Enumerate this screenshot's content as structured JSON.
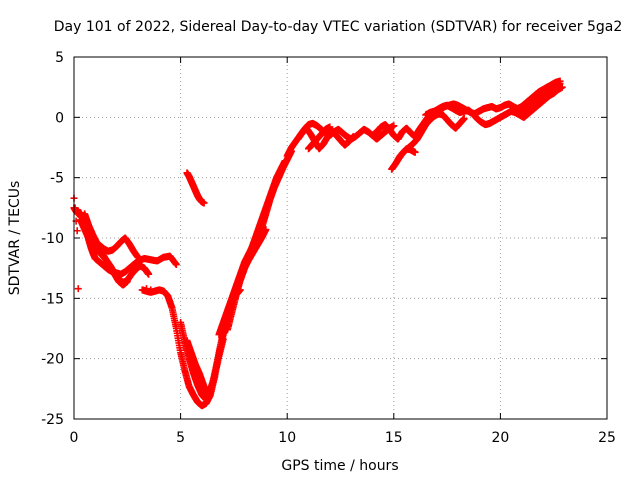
{
  "chart_data": {
    "type": "scatter",
    "title": "Day 101 of 2022, Sidereal Day-to-day VTEC variation (SDTVAR) for receiver 5ga2",
    "xlabel": "GPS time / hours",
    "ylabel": "SDTVAR / TECUs",
    "xlim": [
      0,
      25
    ],
    "ylim": [
      -25,
      5
    ],
    "xticks": [
      0,
      5,
      10,
      15,
      20,
      25
    ],
    "yticks": [
      -25,
      -20,
      -15,
      -10,
      -5,
      0,
      5
    ],
    "grid": true,
    "marker": "+",
    "color": "#ff0000",
    "series": [
      {
        "name": "SDTVAR",
        "tracks": [
          {
            "x": [
              0.0,
              0.1,
              0.2,
              0.3,
              0.4,
              0.5,
              0.6,
              0.7,
              0.8,
              0.9,
              1.0,
              1.2,
              1.4,
              1.6,
              1.8,
              2.0,
              2.2,
              2.4,
              2.6,
              2.8,
              3.0,
              3.3,
              3.6,
              3.9,
              4.2,
              4.5,
              4.8
            ],
            "y": [
              -7.5,
              -7.8,
              -8.0,
              -7.9,
              -8.3,
              -8.8,
              -9.5,
              -10.2,
              -10.8,
              -11.3,
              -11.7,
              -12.0,
              -12.3,
              -12.6,
              -12.8,
              -12.9,
              -13.0,
              -12.8,
              -12.5,
              -12.2,
              -11.9,
              -11.7,
              -11.8,
              -11.9,
              -11.6,
              -11.5,
              -12.2
            ]
          },
          {
            "x": [
              0.3,
              0.5,
              0.7,
              0.9,
              1.1,
              1.3,
              1.5,
              1.7,
              1.9,
              2.1,
              2.3,
              2.5,
              2.7,
              2.9,
              3.1,
              3.3,
              3.5
            ],
            "y": [
              -8.5,
              -9.3,
              -10.1,
              -10.6,
              -11.0,
              -11.4,
              -11.8,
              -12.3,
              -12.9,
              -13.4,
              -13.7,
              -13.5,
              -13.0,
              -12.6,
              -12.3,
              -12.5,
              -13.0
            ]
          },
          {
            "x": [
              0.2,
              0.4,
              0.6,
              0.8,
              1.0,
              1.2,
              1.4,
              1.6,
              1.8,
              2.0,
              2.2,
              2.4,
              2.6,
              2.8,
              3.0
            ],
            "y": [
              -7.8,
              -8.4,
              -9.2,
              -9.8,
              -10.3,
              -10.6,
              -10.9,
              -11.1,
              -11.0,
              -10.7,
              -10.3,
              -10.0,
              -10.5,
              -11.1,
              -11.6
            ]
          },
          {
            "x": [
              0.5,
              0.7,
              0.9,
              1.1,
              1.3,
              1.5,
              1.7,
              1.9,
              2.1,
              2.3,
              2.5
            ],
            "y": [
              -8.0,
              -9.0,
              -9.8,
              -10.5,
              -11.2,
              -11.8,
              -12.4,
              -13.0,
              -13.6,
              -13.9,
              -13.6
            ]
          },
          {
            "x": [
              3.2,
              3.4,
              3.6,
              3.8,
              4.0,
              4.2,
              4.4,
              4.6,
              4.8,
              5.0,
              5.2,
              5.4,
              5.6,
              5.8,
              6.0,
              6.2,
              6.4,
              6.6,
              6.8,
              7.0,
              7.2,
              7.4,
              7.6,
              7.8
            ],
            "y": [
              -14.3,
              -14.4,
              -14.5,
              -14.4,
              -14.3,
              -14.4,
              -14.8,
              -15.8,
              -17.5,
              -19.5,
              -21.0,
              -22.3,
              -23.0,
              -23.6,
              -23.9,
              -23.7,
              -23.0,
              -21.5,
              -19.5,
              -17.8,
              -16.5,
              -15.3,
              -14.7,
              -14.3
            ]
          },
          {
            "x": [
              5.0,
              5.2,
              5.4,
              5.6,
              5.8,
              6.0,
              6.2,
              6.4,
              6.6,
              6.8,
              7.0
            ],
            "y": [
              -17.0,
              -18.6,
              -20.0,
              -21.2,
              -22.2,
              -23.0,
              -23.4,
              -22.8,
              -21.4,
              -19.8,
              -18.4
            ]
          },
          {
            "x": [
              5.3,
              5.5,
              5.7,
              5.9,
              6.1,
              6.3,
              6.5,
              6.7,
              6.9,
              7.1,
              7.3,
              7.5,
              7.7,
              7.9,
              8.1,
              8.3,
              8.5,
              8.7,
              8.9,
              9.1,
              9.3,
              9.5,
              9.7,
              9.9
            ],
            "y": [
              -18.5,
              -19.5,
              -20.5,
              -21.3,
              -22.3,
              -23.0,
              -22.0,
              -20.4,
              -18.8,
              -17.3,
              -16.0,
              -14.9,
              -13.9,
              -13.0,
              -12.0,
              -11.0,
              -10.0,
              -9.0,
              -8.0,
              -7.0,
              -6.0,
              -5.0,
              -4.3,
              -3.6
            ]
          },
          {
            "x": [
              6.8,
              7.0,
              7.2,
              7.4,
              7.6,
              7.8,
              8.0,
              8.2,
              8.4,
              8.6,
              8.8,
              9.0,
              9.2,
              9.4,
              9.6,
              9.8,
              10.0,
              10.2
            ],
            "y": [
              -18.0,
              -17.0,
              -16.0,
              -15.0,
              -14.0,
              -13.0,
              -12.0,
              -11.3,
              -10.6,
              -10.0,
              -9.2,
              -8.0,
              -6.8,
              -5.8,
              -5.0,
              -4.2,
              -3.5,
              -2.8
            ]
          },
          {
            "x": [
              7.2,
              7.4,
              7.6,
              7.8,
              8.0,
              8.2,
              8.4,
              8.6,
              8.8,
              9.0
            ],
            "y": [
              -17.6,
              -16.2,
              -14.8,
              -13.5,
              -12.5,
              -11.8,
              -11.2,
              -10.6,
              -10.0,
              -9.3
            ]
          },
          {
            "x": [
              5.3,
              5.4,
              5.5,
              5.6,
              5.7,
              5.8,
              5.9,
              6.0,
              6.1
            ],
            "y": [
              -4.6,
              -4.9,
              -5.3,
              -5.7,
              -6.1,
              -6.5,
              -6.8,
              -7.0,
              -7.1
            ]
          },
          {
            "x": [
              10.0,
              10.2,
              10.4,
              10.6,
              10.8,
              11.0,
              11.2,
              11.4,
              11.6,
              11.8,
              12.0,
              12.2,
              12.4,
              12.6,
              12.8,
              13.0,
              13.2,
              13.4,
              13.6,
              13.8,
              14.0,
              14.2,
              14.4,
              14.6,
              14.8,
              15.0
            ],
            "y": [
              -3.2,
              -2.5,
              -2.0,
              -1.5,
              -1.0,
              -0.6,
              -0.5,
              -0.7,
              -1.0,
              -1.3,
              -1.5,
              -1.2,
              -1.0,
              -1.3,
              -1.6,
              -1.8,
              -1.6,
              -1.3,
              -1.0,
              -1.2,
              -1.5,
              -1.8,
              -1.5,
              -1.2,
              -0.9,
              -0.7
            ]
          },
          {
            "x": [
              10.5,
              10.7,
              10.9,
              11.1,
              11.3,
              11.5,
              11.7,
              11.9,
              12.1,
              12.3,
              12.5,
              12.7,
              12.9,
              13.1
            ],
            "y": [
              -1.8,
              -1.3,
              -0.9,
              -1.4,
              -2.0,
              -2.6,
              -2.2,
              -1.6,
              -1.1,
              -1.5,
              -1.9,
              -2.3,
              -2.0,
              -1.6
            ]
          },
          {
            "x": [
              11.0,
              11.2,
              11.4,
              11.6,
              11.8,
              12.0
            ],
            "y": [
              -2.6,
              -2.2,
              -1.8,
              -1.4,
              -1.0,
              -0.8
            ]
          },
          {
            "x": [
              14.0,
              14.2,
              14.4,
              14.6,
              14.8,
              15.0,
              15.2,
              15.4,
              15.6,
              15.8,
              16.0,
              16.2,
              16.4,
              16.6,
              16.8,
              17.0,
              17.2,
              17.4,
              17.6,
              17.8,
              18.0,
              18.2,
              18.4,
              18.6,
              18.8,
              19.0,
              19.2,
              19.4,
              19.6,
              19.8,
              20.0,
              20.2,
              20.4,
              20.6,
              20.8,
              21.0,
              21.2,
              21.4,
              21.6,
              21.8,
              22.0,
              22.2,
              22.4,
              22.6,
              22.8
            ],
            "y": [
              -1.5,
              -1.2,
              -0.8,
              -0.6,
              -1.0,
              -1.5,
              -1.8,
              -1.2,
              -0.9,
              -1.3,
              -1.6,
              -1.0,
              -0.5,
              0.0,
              0.3,
              0.5,
              0.7,
              0.9,
              1.0,
              1.1,
              1.0,
              0.8,
              0.6,
              0.4,
              0.3,
              0.5,
              0.7,
              0.8,
              0.9,
              0.7,
              0.8,
              1.0,
              1.1,
              0.9,
              0.7,
              0.9,
              1.2,
              1.5,
              1.8,
              2.1,
              2.3,
              2.5,
              2.7,
              2.9,
              3.0
            ]
          },
          {
            "x": [
              14.9,
              15.1,
              15.3,
              15.5,
              15.7,
              15.9,
              16.1,
              16.3,
              16.5,
              16.7,
              16.9,
              17.1,
              17.3,
              17.5,
              17.7,
              17.9,
              18.1,
              18.3
            ],
            "y": [
              -4.3,
              -3.8,
              -3.2,
              -2.8,
              -2.5,
              -2.2,
              -1.8,
              -1.2,
              -0.6,
              -0.2,
              0.1,
              0.3,
              0.2,
              -0.2,
              -0.6,
              -0.9,
              -0.5,
              -0.1
            ]
          },
          {
            "x": [
              15.2,
              15.4,
              15.6,
              15.8,
              16.0
            ],
            "y": [
              -3.5,
              -3.0,
              -2.6,
              -2.7,
              -2.9
            ]
          },
          {
            "x": [
              16.5,
              16.7,
              16.9,
              17.1,
              17.3,
              17.5,
              17.7,
              17.9,
              18.1,
              18.3,
              18.5,
              18.7,
              18.9,
              19.1,
              19.3,
              19.5,
              19.7,
              19.9,
              20.1,
              20.3,
              20.5,
              20.7,
              20.9,
              21.1,
              21.3,
              21.5,
              21.7,
              21.9,
              22.1,
              22.3,
              22.5,
              22.7,
              22.9
            ],
            "y": [
              0.2,
              0.4,
              0.5,
              0.7,
              0.9,
              1.0,
              0.8,
              0.6,
              0.4,
              0.5,
              0.6,
              0.3,
              -0.1,
              -0.4,
              -0.6,
              -0.5,
              -0.3,
              -0.1,
              0.1,
              0.3,
              0.5,
              0.4,
              0.2,
              0.0,
              0.3,
              0.6,
              0.9,
              1.2,
              1.5,
              1.8,
              2.0,
              2.3,
              2.5
            ]
          },
          {
            "x": [
              21.0,
              21.3,
              21.6,
              21.9,
              22.2,
              22.5,
              22.8
            ],
            "y": [
              0.4,
              0.9,
              1.4,
              1.8,
              2.2,
              2.5,
              2.8
            ]
          }
        ],
        "points": {
          "x": [
            0.0,
            0.05,
            0.1,
            0.15,
            0.2,
            3.4,
            3.6
          ],
          "y": [
            -6.7,
            -7.5,
            -8.6,
            -9.4,
            -14.2,
            -14.2,
            -14.3
          ]
        }
      }
    ]
  }
}
